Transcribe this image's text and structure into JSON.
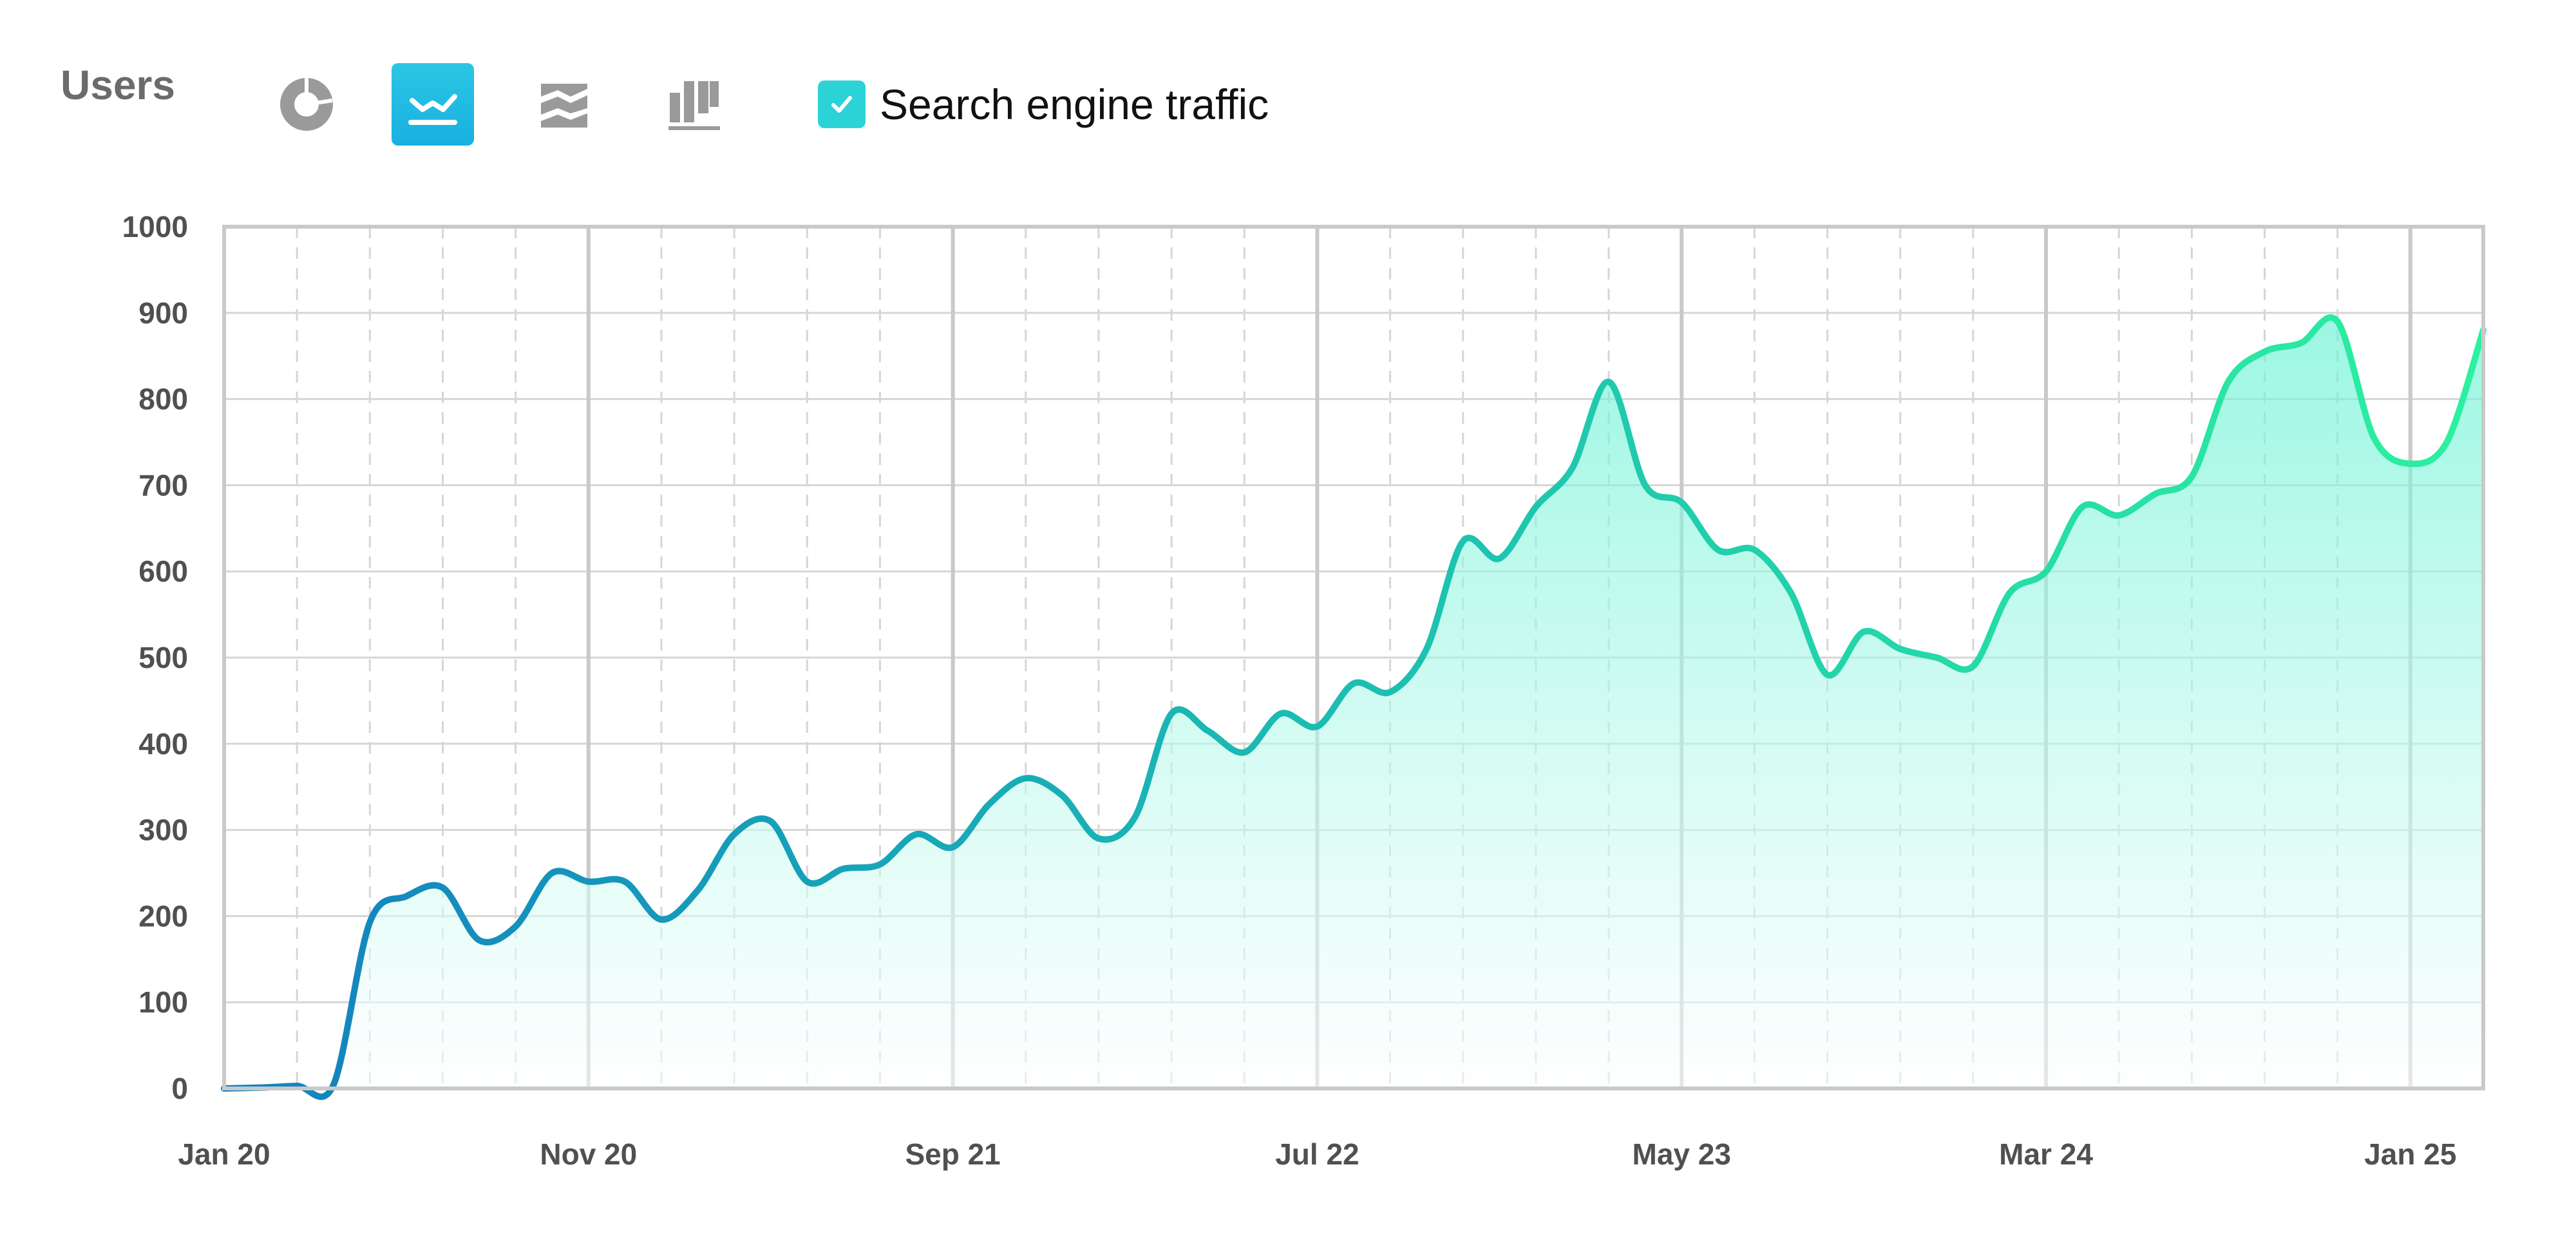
{
  "header": {
    "title": "Users",
    "views": [
      {
        "icon": "pie-chart-icon",
        "active": false
      },
      {
        "icon": "line-chart-icon",
        "active": true
      },
      {
        "icon": "stacked-area-icon",
        "active": false
      },
      {
        "icon": "bar-chart-icon",
        "active": false
      }
    ],
    "legend": {
      "label": "Search engine traffic",
      "checked": true,
      "color": "#2bd3d6"
    }
  },
  "colors": {
    "line_start": "#1380c0",
    "line_mid": "#1ab9b3",
    "line_end": "#2df0a0",
    "fill_top": "#5ef2d2",
    "fill_bottom": "#ffffff",
    "grid": "#d6d6d6",
    "grid_major": "#c9c9c9",
    "tick_text": "#505050",
    "button_active": "#1fb8e2",
    "icon_inactive": "#9a9a9a"
  },
  "chart_data": {
    "type": "area",
    "title": "Users",
    "xlabel": "",
    "ylabel": "",
    "ylim": [
      0,
      1000
    ],
    "y_ticks": [
      0,
      100,
      200,
      300,
      400,
      500,
      600,
      700,
      800,
      900,
      1000
    ],
    "x_tick_labels": [
      "Jan 20",
      "Nov 20",
      "Sep 21",
      "Jul 22",
      "May 23",
      "Mar 24",
      "Jan 25"
    ],
    "x_tick_index": [
      0,
      10,
      20,
      30,
      40,
      50,
      60
    ],
    "x_count": 63,
    "grid": true,
    "legend_position": "top",
    "series": [
      {
        "name": "Search engine traffic",
        "values": [
          0,
          1,
          3,
          4,
          193,
          223,
          233,
          172,
          188,
          250,
          240,
          240,
          196,
          230,
          295,
          310,
          240,
          255,
          260,
          295,
          280,
          330,
          360,
          340,
          290,
          315,
          435,
          415,
          390,
          435,
          420,
          470,
          460,
          510,
          635,
          615,
          675,
          720,
          820,
          700,
          680,
          625,
          625,
          575,
          480,
          530,
          510,
          500,
          490,
          575,
          600,
          675,
          665,
          690,
          710,
          820,
          855,
          865,
          890,
          755,
          725,
          750,
          880
        ]
      }
    ]
  }
}
